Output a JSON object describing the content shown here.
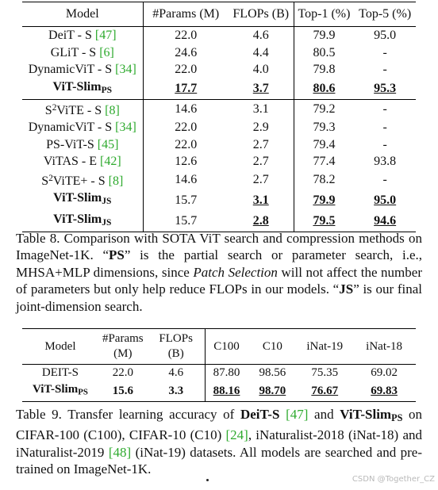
{
  "table8": {
    "header": {
      "model": "Model",
      "params": "#Params (M)",
      "flops": "FLOPs (B)",
      "top1": "Top-1 (%)",
      "top5": "Top-5 (%)"
    },
    "rows": [
      {
        "model": "DeiT - S ",
        "cite": "[47]",
        "params": "22.0",
        "flops": "4.6",
        "top1": "79.9",
        "top5": "95.0"
      },
      {
        "model": "GLiT - S ",
        "cite": "[6]",
        "params": "24.6",
        "flops": "4.4",
        "top1": "80.5",
        "top5": "-"
      },
      {
        "model": "DynamicViT - S ",
        "cite": "[34]",
        "params": "22.0",
        "flops": "4.0",
        "top1": "79.8",
        "top5": "-"
      },
      {
        "model": "ViT-Slim",
        "sub": "PS",
        "params": "17.7",
        "flops": "3.7",
        "top1": "80.6",
        "top5": "95.3"
      },
      {
        "model_pre": "S",
        "sup": "2",
        "model": "ViTE - S ",
        "cite": "[8]",
        "params": "14.6",
        "flops": "3.1",
        "top1": "79.2",
        "top5": "-"
      },
      {
        "model": "DynamicViT - S ",
        "cite": "[34]",
        "params": "22.0",
        "flops": "2.9",
        "top1": "79.3",
        "top5": "-"
      },
      {
        "model": "PS-ViT-S ",
        "cite": "[45]",
        "params": "22.0",
        "flops": "2.7",
        "top1": "79.4",
        "top5": "-"
      },
      {
        "model": "ViTAS - E ",
        "cite": "[42]",
        "params": "12.6",
        "flops": "2.7",
        "top1": "77.4",
        "top5": "93.8"
      },
      {
        "model_pre": "S",
        "sup": "2",
        "model": "ViTE+ - S ",
        "cite": "[8]",
        "params": "14.6",
        "flops": "2.7",
        "top1": "78.2",
        "top5": "-"
      },
      {
        "model": "ViT-Slim",
        "sub": "JS",
        "params": "15.7",
        "flops": "3.1",
        "top1": "79.9",
        "top5": "95.0"
      },
      {
        "model": "ViT-Slim",
        "sub": "JS",
        "params": "15.7",
        "flops": "2.8",
        "top1": "79.5",
        "top5": "94.6"
      }
    ]
  },
  "caption8": {
    "p1": "Table 8.  Comparison with SOTA ViT search and compression methods on ImageNet-1K. “",
    "ps": "PS",
    "p2": "” is the partial search or parameter search, i.e., MHSA+MLP dimensions, since ",
    "ital": "Patch Selection",
    "p3": " will not affect the number of parameters but only help reduce FLOPs in our models. “",
    "js": "JS",
    "p4": "” is our final joint-dimension search."
  },
  "table9": {
    "header": {
      "model": "Model",
      "params_l1": "#Params",
      "params_l2": "(M)",
      "flops_l1": "FLOPs",
      "flops_l2": "(B)",
      "c100": "C100",
      "c10": "C10",
      "inat19": "iNat-19",
      "inat18": "iNat-18"
    },
    "row1": {
      "model": "DEIT-S",
      "params": "22.0",
      "flops": "4.6",
      "c100": "87.80",
      "c10": "98.56",
      "inat19": "75.35",
      "inat18": "69.02"
    },
    "row2": {
      "model": "ViT-Slim",
      "sub": "PS",
      "params": "15.6",
      "flops": "3.3",
      "c100": "88.16",
      "c10": "98.70",
      "inat19": "76.67",
      "inat18": "69.83"
    }
  },
  "caption9": {
    "p1": "Table 9.  Transfer learning accuracy of ",
    "deit": "DeiT-S",
    "c47": "[47]",
    "p2": " and ",
    "slim": "ViT-Slim",
    "sub": "PS",
    "p3": " on CIFAR-100 (C100), CIFAR-10 (C10) ",
    "c24": "[24]",
    "p4": ", iNaturalist-2018 (iNat-18) and iNaturalist-2019 ",
    "c48": "[48]",
    "p5": " (iNat-19) datasets. All models are searched and pre-trained on ImageNet-1K."
  },
  "watermark": "CSDN @Together_CZ",
  "colors": {
    "citation": "#2eaa2e",
    "text": "#111111",
    "watermark": "#b9b9b9"
  }
}
